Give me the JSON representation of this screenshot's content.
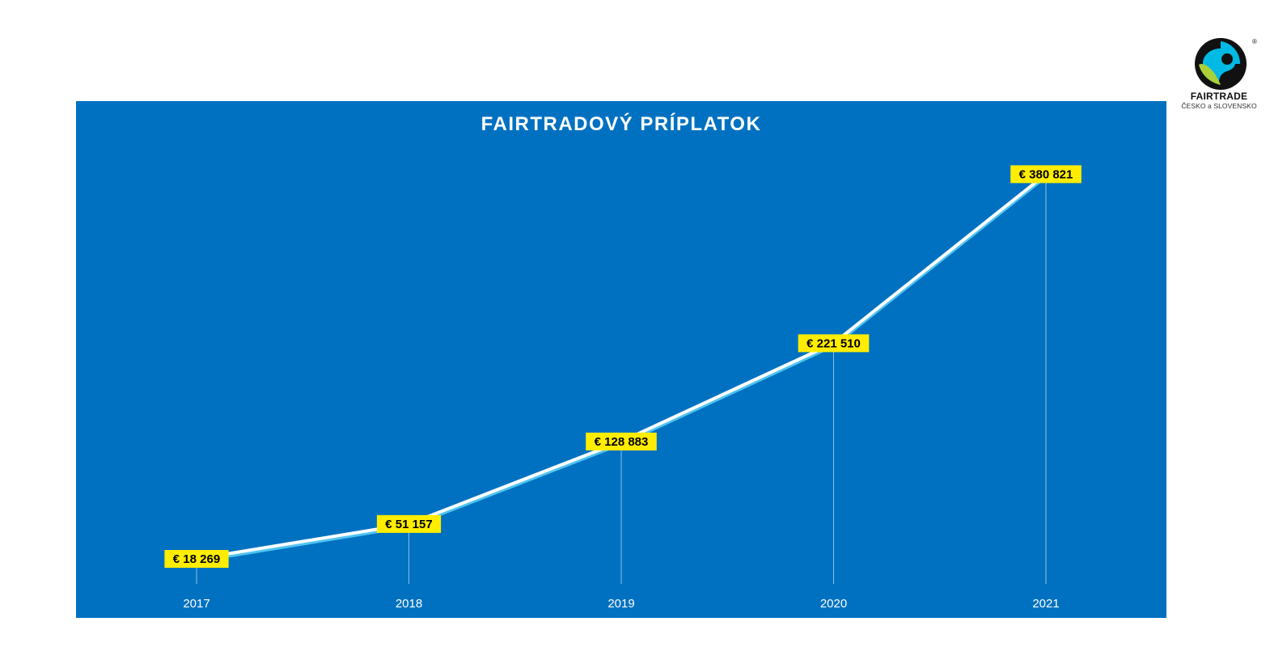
{
  "logo": {
    "brand": "FAIRTRADE",
    "subtitle": "ČESKO a SLOVENSKO",
    "registered": "®",
    "icon": "fairtrade-mark-icon",
    "colors": {
      "blue": "#00b9e4",
      "green": "#a9d039",
      "black": "#111111"
    }
  },
  "colors": {
    "panel": "#0071c1",
    "line": "#ffffff",
    "line_shadow": "#4fc3f0",
    "label_bg": "#ffed00",
    "label_text": "#000000",
    "tick_text": "#ffffff"
  },
  "chart_data": {
    "type": "line",
    "title": "FAIRTRADOVÝ PRÍPLATOK",
    "xlabel": "",
    "ylabel": "",
    "categories": [
      "2017",
      "2018",
      "2019",
      "2020",
      "2021"
    ],
    "series": [
      {
        "values": [
          18269,
          51157,
          128883,
          221510,
          380821
        ],
        "labels": [
          "€ 18 269",
          "€ 51 157",
          "€ 128 883",
          "€ 221 510",
          "€ 380 821"
        ]
      }
    ],
    "ylim": [
      0,
      400000
    ],
    "grid": false,
    "legend": "none"
  }
}
